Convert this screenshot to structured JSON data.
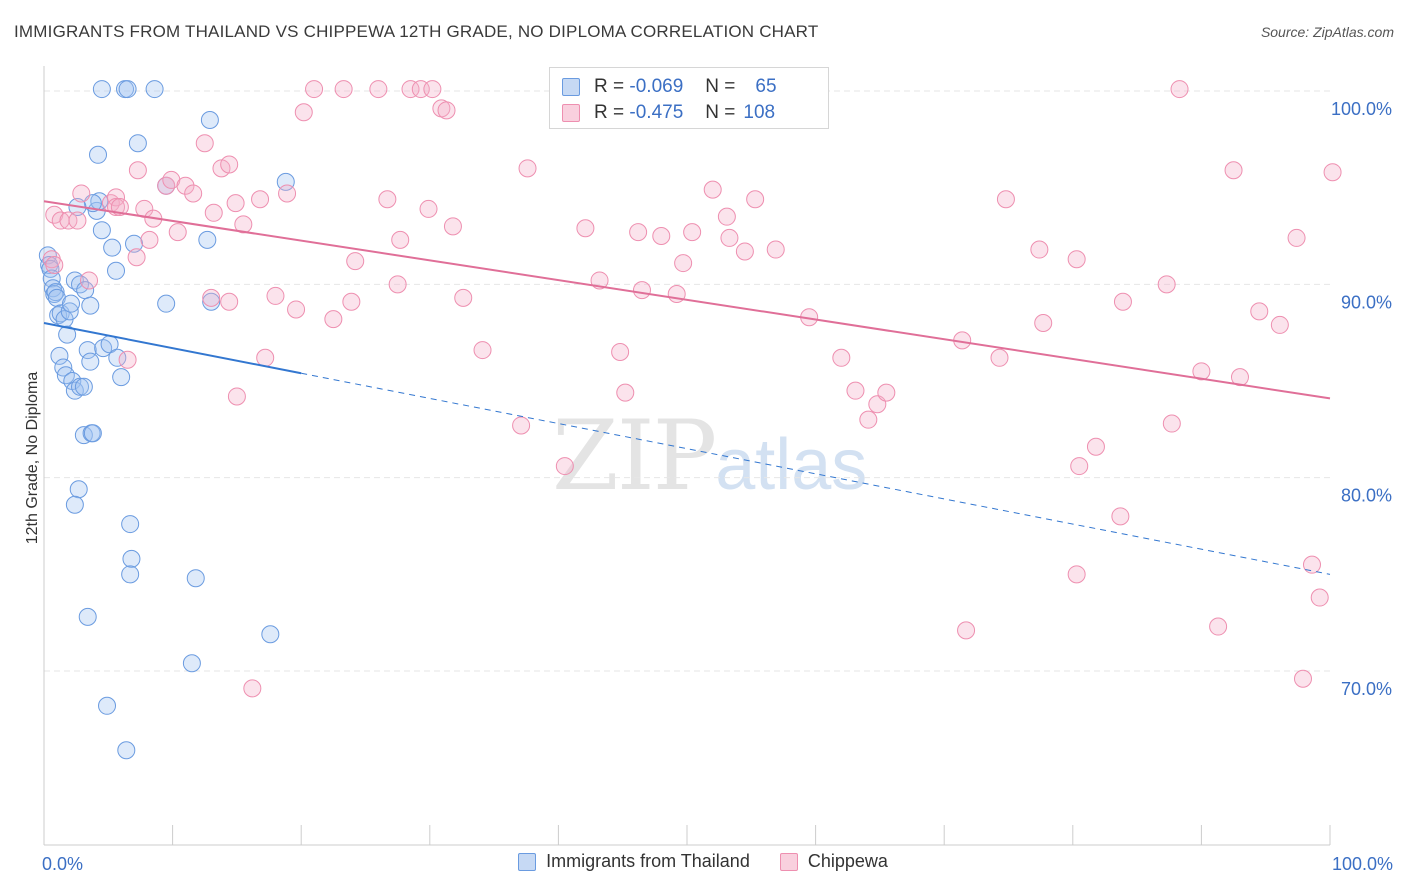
{
  "title": "IMMIGRANTS FROM THAILAND VS CHIPPEWA 12TH GRADE, NO DIPLOMA CORRELATION CHART",
  "source": "Source: ZipAtlas.com",
  "watermark": {
    "zip": "ZIP",
    "atlas": "atlas"
  },
  "colors": {
    "blue": "#6a9be0",
    "blue_line": "#3377d0",
    "pink": "#ee8fb0",
    "pink_line": "#e06f98",
    "axis_text": "#3b6fc4"
  },
  "legend": {
    "rows": [
      {
        "r_label": "R =",
        "r_value": "-0.069",
        "n_label": "N =",
        "n_value": "65"
      },
      {
        "r_label": "R =",
        "r_value": "-0.475",
        "n_label": "N =",
        "n_value": "108"
      }
    ]
  },
  "bottom_legend": {
    "series1": "Immigrants from Thailand",
    "series2": "Chippewa"
  },
  "chart_data": {
    "type": "scatter",
    "title": "IMMIGRANTS FROM THAILAND VS CHIPPEWA 12TH GRADE, NO DIPLOMA CORRELATION CHART",
    "xlabel": "",
    "ylabel": "12th Grade, No Diploma",
    "xlim": [
      0,
      100
    ],
    "ylim": [
      61,
      101.5
    ],
    "x_tick_labels": [
      {
        "value": 0,
        "label": "0.0%"
      },
      {
        "value": 100,
        "label": "100.0%"
      }
    ],
    "y_tick_labels": [
      {
        "value": 100,
        "label": "100.0%"
      },
      {
        "value": 90,
        "label": "90.0%"
      },
      {
        "value": 80,
        "label": "80.0%"
      },
      {
        "value": 70,
        "label": "70.0%"
      }
    ],
    "grid": true,
    "legend_position": "top-center",
    "series": [
      {
        "name": "Immigrants from Thailand",
        "r": -0.069,
        "n": 65,
        "trend": {
          "x0": 0,
          "y0": 88.0,
          "x1": 20,
          "y1": 85.4,
          "dash_to_x": 100,
          "dash_to_y": 75.0
        },
        "points": [
          [
            0.3,
            91.5
          ],
          [
            0.4,
            91.0
          ],
          [
            0.5,
            90.8
          ],
          [
            0.6,
            90.3
          ],
          [
            0.7,
            89.8
          ],
          [
            0.8,
            89.5
          ],
          [
            0.9,
            89.6
          ],
          [
            1.0,
            89.3
          ],
          [
            1.1,
            88.4
          ],
          [
            1.3,
            88.5
          ],
          [
            1.6,
            88.2
          ],
          [
            1.8,
            87.4
          ],
          [
            2.0,
            88.6
          ],
          [
            2.1,
            89.0
          ],
          [
            2.4,
            90.2
          ],
          [
            2.8,
            90.0
          ],
          [
            3.2,
            89.7
          ],
          [
            3.6,
            88.9
          ],
          [
            1.2,
            86.3
          ],
          [
            1.5,
            85.7
          ],
          [
            1.7,
            85.3
          ],
          [
            2.2,
            85.0
          ],
          [
            2.4,
            84.5
          ],
          [
            2.8,
            84.7
          ],
          [
            3.1,
            84.7
          ],
          [
            3.4,
            86.6
          ],
          [
            3.6,
            86.0
          ],
          [
            4.6,
            86.7
          ],
          [
            5.1,
            86.9
          ],
          [
            5.7,
            86.2
          ],
          [
            6.0,
            85.2
          ],
          [
            3.1,
            82.2
          ],
          [
            3.7,
            82.3
          ],
          [
            3.8,
            82.3
          ],
          [
            2.7,
            79.4
          ],
          [
            2.4,
            78.6
          ],
          [
            6.7,
            77.6
          ],
          [
            6.8,
            75.8
          ],
          [
            6.7,
            75.0
          ],
          [
            11.8,
            74.8
          ],
          [
            3.4,
            72.8
          ],
          [
            17.6,
            71.9
          ],
          [
            11.5,
            70.4
          ],
          [
            4.9,
            68.2
          ],
          [
            6.4,
            65.9
          ],
          [
            4.1,
            93.8
          ],
          [
            4.3,
            94.3
          ],
          [
            4.5,
            92.8
          ],
          [
            5.3,
            91.9
          ],
          [
            7.0,
            92.1
          ],
          [
            5.6,
            90.7
          ],
          [
            9.5,
            89.0
          ],
          [
            13.0,
            89.1
          ],
          [
            4.2,
            96.7
          ],
          [
            7.3,
            97.3
          ],
          [
            12.9,
            98.5
          ],
          [
            4.5,
            100.1
          ],
          [
            6.3,
            100.1
          ],
          [
            6.5,
            100.1
          ],
          [
            8.6,
            100.1
          ],
          [
            9.5,
            95.1
          ],
          [
            12.7,
            92.3
          ],
          [
            18.8,
            95.3
          ],
          [
            3.8,
            94.2
          ],
          [
            2.6,
            94.0
          ]
        ]
      },
      {
        "name": "Chippewa",
        "r": -0.475,
        "n": 108,
        "trend": {
          "x0": 0,
          "y0": 94.3,
          "x1": 100,
          "y1": 84.1
        },
        "points": [
          [
            0.6,
            91.3
          ],
          [
            0.8,
            91.0
          ],
          [
            0.8,
            93.6
          ],
          [
            1.3,
            93.3
          ],
          [
            1.9,
            93.3
          ],
          [
            2.6,
            93.3
          ],
          [
            2.9,
            94.7
          ],
          [
            3.5,
            90.2
          ],
          [
            5.2,
            94.2
          ],
          [
            5.6,
            94.5
          ],
          [
            5.6,
            94.0
          ],
          [
            5.9,
            94.0
          ],
          [
            7.2,
            91.4
          ],
          [
            7.3,
            95.9
          ],
          [
            7.8,
            93.9
          ],
          [
            8.5,
            93.4
          ],
          [
            9.5,
            95.1
          ],
          [
            9.9,
            95.4
          ],
          [
            10.4,
            92.7
          ],
          [
            11.0,
            95.1
          ],
          [
            11.6,
            94.7
          ],
          [
            12.5,
            97.3
          ],
          [
            13.2,
            93.7
          ],
          [
            13.8,
            96.0
          ],
          [
            14.4,
            96.2
          ],
          [
            14.9,
            94.2
          ],
          [
            15.5,
            93.1
          ],
          [
            16.8,
            94.4
          ],
          [
            18.9,
            94.7
          ],
          [
            13.0,
            89.3
          ],
          [
            14.4,
            89.1
          ],
          [
            18.0,
            89.4
          ],
          [
            19.6,
            88.7
          ],
          [
            20.2,
            98.9
          ],
          [
            21.0,
            100.1
          ],
          [
            23.3,
            100.1
          ],
          [
            26.0,
            100.1
          ],
          [
            28.5,
            100.1
          ],
          [
            29.3,
            100.1
          ],
          [
            30.2,
            100.1
          ],
          [
            30.9,
            99.1
          ],
          [
            31.3,
            99.0
          ],
          [
            22.5,
            88.2
          ],
          [
            23.9,
            89.1
          ],
          [
            24.2,
            91.2
          ],
          [
            26.7,
            94.4
          ],
          [
            27.5,
            90.0
          ],
          [
            27.7,
            92.3
          ],
          [
            29.9,
            93.9
          ],
          [
            31.8,
            93.0
          ],
          [
            32.6,
            89.3
          ],
          [
            34.1,
            86.6
          ],
          [
            37.1,
            82.7
          ],
          [
            37.6,
            96.0
          ],
          [
            40.5,
            80.6
          ],
          [
            42.1,
            92.9
          ],
          [
            43.2,
            90.2
          ],
          [
            44.8,
            86.5
          ],
          [
            45.2,
            84.4
          ],
          [
            46.2,
            92.7
          ],
          [
            46.5,
            89.7
          ],
          [
            48.0,
            92.5
          ],
          [
            49.2,
            89.5
          ],
          [
            49.7,
            91.1
          ],
          [
            50.4,
            92.7
          ],
          [
            52.0,
            94.9
          ],
          [
            53.1,
            93.5
          ],
          [
            53.3,
            92.4
          ],
          [
            54.5,
            91.7
          ],
          [
            55.3,
            94.4
          ],
          [
            56.9,
            91.8
          ],
          [
            59.5,
            88.3
          ],
          [
            62.0,
            86.2
          ],
          [
            63.1,
            84.5
          ],
          [
            64.1,
            83.0
          ],
          [
            64.8,
            83.8
          ],
          [
            65.5,
            84.4
          ],
          [
            71.7,
            72.1
          ],
          [
            71.4,
            87.1
          ],
          [
            74.3,
            86.2
          ],
          [
            74.8,
            94.4
          ],
          [
            77.7,
            88.0
          ],
          [
            77.4,
            91.8
          ],
          [
            80.3,
            91.3
          ],
          [
            80.3,
            75.0
          ],
          [
            80.5,
            80.6
          ],
          [
            81.8,
            81.6
          ],
          [
            83.7,
            78.0
          ],
          [
            83.9,
            89.1
          ],
          [
            87.3,
            90.0
          ],
          [
            87.7,
            82.8
          ],
          [
            88.3,
            100.1
          ],
          [
            90.0,
            85.5
          ],
          [
            91.3,
            72.3
          ],
          [
            92.5,
            95.9
          ],
          [
            93.0,
            85.2
          ],
          [
            94.5,
            88.6
          ],
          [
            96.1,
            87.9
          ],
          [
            97.4,
            92.4
          ],
          [
            97.9,
            69.6
          ],
          [
            98.6,
            75.5
          ],
          [
            99.2,
            73.8
          ],
          [
            100.2,
            95.8
          ],
          [
            15.0,
            84.2
          ],
          [
            17.2,
            86.2
          ],
          [
            16.2,
            69.1
          ],
          [
            6.5,
            86.1
          ],
          [
            8.2,
            92.3
          ]
        ]
      }
    ]
  }
}
